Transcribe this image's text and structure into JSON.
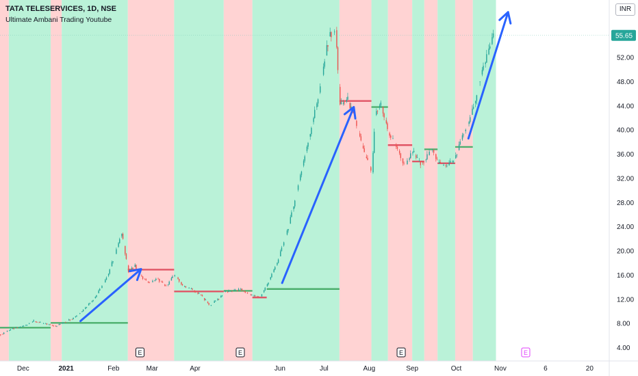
{
  "header": {
    "title": "TATA TELESERVICES, 1D, NSE",
    "subtitle": "Ultimate Ambani Trading Youtube"
  },
  "currency": "INR",
  "last_price_label": "55.65",
  "colors": {
    "green_zone": "#baf2d8",
    "red_zone": "#ffd3d3",
    "up_candle": "#26a69a",
    "down_candle": "#ef5350",
    "green_line": "#4caf6d",
    "red_line": "#e05465",
    "arrow": "#2962ff",
    "price_tag": "#26a69a"
  },
  "chart_data": {
    "type": "candlestick",
    "y_axis": {
      "range": [
        1.8,
        61.5
      ],
      "ticks": [
        "4.00",
        "8.00",
        "12.00",
        "16.00",
        "20.00",
        "24.00",
        "28.00",
        "32.00",
        "36.00",
        "40.00",
        "44.00",
        "48.00",
        "52.00"
      ],
      "tick_values": [
        4,
        8,
        12,
        16,
        20,
        24,
        28,
        32,
        36,
        40,
        44,
        48,
        52
      ]
    },
    "x_axis": {
      "ticks": [
        {
          "label": "Dec",
          "x": 21,
          "bold": false
        },
        {
          "label": "2021",
          "x": 60,
          "bold": true
        },
        {
          "label": "Feb",
          "x": 103,
          "bold": false
        },
        {
          "label": "Mar",
          "x": 138,
          "bold": false
        },
        {
          "label": "Apr",
          "x": 177,
          "bold": false
        },
        {
          "label": "Jun",
          "x": 254,
          "bold": false
        },
        {
          "label": "Jul",
          "x": 294,
          "bold": false
        },
        {
          "label": "Aug",
          "x": 335,
          "bold": false
        },
        {
          "label": "Sep",
          "x": 374,
          "bold": false
        },
        {
          "label": "Oct",
          "x": 414,
          "bold": false
        },
        {
          "label": "Nov",
          "x": 454,
          "bold": false
        },
        {
          "label": "6",
          "x": 495,
          "bold": false
        },
        {
          "label": "20",
          "x": 535,
          "bold": false
        }
      ]
    },
    "zones": [
      {
        "from": 0,
        "to": 8,
        "color": "red"
      },
      {
        "from": 8,
        "to": 46,
        "color": "green"
      },
      {
        "from": 46,
        "to": 56,
        "color": "red"
      },
      {
        "from": 56,
        "to": 116,
        "color": "green"
      },
      {
        "from": 116,
        "to": 158,
        "color": "red"
      },
      {
        "from": 158,
        "to": 203,
        "color": "green"
      },
      {
        "from": 203,
        "to": 229,
        "color": "red"
      },
      {
        "from": 229,
        "to": 308,
        "color": "green"
      },
      {
        "from": 308,
        "to": 337,
        "color": "red"
      },
      {
        "from": 337,
        "to": 352,
        "color": "green"
      },
      {
        "from": 352,
        "to": 374,
        "color": "red"
      },
      {
        "from": 374,
        "to": 385,
        "color": "green"
      },
      {
        "from": 385,
        "to": 397,
        "color": "red"
      },
      {
        "from": 397,
        "to": 413,
        "color": "green"
      },
      {
        "from": 413,
        "to": 429,
        "color": "red"
      },
      {
        "from": 429,
        "to": 450,
        "color": "green"
      }
    ],
    "levels": [
      {
        "from": 0,
        "to": 46,
        "value": 7.3,
        "color": "green"
      },
      {
        "from": 46,
        "to": 116,
        "value": 8.1,
        "color": "green"
      },
      {
        "from": 116,
        "to": 158,
        "value": 16.9,
        "color": "red"
      },
      {
        "from": 158,
        "to": 203,
        "value": 13.3,
        "color": "red"
      },
      {
        "from": 203,
        "to": 229,
        "value": 13.4,
        "color": "green"
      },
      {
        "from": 229,
        "to": 242,
        "value": 12.3,
        "color": "red"
      },
      {
        "from": 242,
        "to": 308,
        "value": 13.7,
        "color": "green"
      },
      {
        "from": 308,
        "to": 337,
        "value": 44.8,
        "color": "red"
      },
      {
        "from": 337,
        "to": 352,
        "value": 43.8,
        "color": "green"
      },
      {
        "from": 352,
        "to": 374,
        "value": 37.5,
        "color": "red"
      },
      {
        "from": 374,
        "to": 385,
        "value": 34.8,
        "color": "red"
      },
      {
        "from": 385,
        "to": 397,
        "value": 36.8,
        "color": "green"
      },
      {
        "from": 397,
        "to": 413,
        "value": 34.5,
        "color": "red"
      },
      {
        "from": 413,
        "to": 429,
        "value": 37.2,
        "color": "green"
      }
    ],
    "price_anchors": [
      [
        0,
        6.2
      ],
      [
        10,
        7.1
      ],
      [
        20,
        7.5
      ],
      [
        30,
        8.4
      ],
      [
        40,
        7.9
      ],
      [
        50,
        7.6
      ],
      [
        56,
        8.1
      ],
      [
        66,
        8.9
      ],
      [
        76,
        10.4
      ],
      [
        86,
        12.4
      ],
      [
        96,
        15.4
      ],
      [
        104,
        19.5
      ],
      [
        110,
        23.0
      ],
      [
        116,
        16.5
      ],
      [
        122,
        17.5
      ],
      [
        128,
        15.6
      ],
      [
        135,
        14.6
      ],
      [
        142,
        15.4
      ],
      [
        150,
        14.1
      ],
      [
        158,
        16.1
      ],
      [
        166,
        14.1
      ],
      [
        174,
        13.6
      ],
      [
        182,
        12.6
      ],
      [
        190,
        11.0
      ],
      [
        198,
        12.1
      ],
      [
        203,
        13.2
      ],
      [
        210,
        13.4
      ],
      [
        218,
        13.6
      ],
      [
        229,
        12.5
      ],
      [
        236,
        12.5
      ],
      [
        242,
        14.5
      ],
      [
        252,
        18.5
      ],
      [
        262,
        24.5
      ],
      [
        272,
        32.5
      ],
      [
        282,
        40.5
      ],
      [
        290,
        47.0
      ],
      [
        298,
        55.5
      ],
      [
        304,
        56.5
      ],
      [
        308,
        44.0
      ],
      [
        315,
        45.0
      ],
      [
        322,
        41.5
      ],
      [
        330,
        36.0
      ],
      [
        337,
        33.0
      ],
      [
        340,
        42.5
      ],
      [
        345,
        44.5
      ],
      [
        352,
        39.5
      ],
      [
        360,
        37.0
      ],
      [
        367,
        34.0
      ],
      [
        374,
        36.5
      ],
      [
        380,
        34.5
      ],
      [
        385,
        35.0
      ],
      [
        392,
        37.0
      ],
      [
        397,
        34.5
      ],
      [
        405,
        34.0
      ],
      [
        413,
        35.5
      ],
      [
        419,
        39.0
      ],
      [
        424,
        41.0
      ],
      [
        429,
        43.5
      ],
      [
        434,
        48.0
      ],
      [
        440,
        51.5
      ],
      [
        444,
        53.5
      ],
      [
        447,
        55.6
      ]
    ],
    "event_markers": [
      {
        "label": "E",
        "x": 127,
        "style": "dark"
      },
      {
        "label": "E",
        "x": 218,
        "style": "dark"
      },
      {
        "label": "E",
        "x": 364,
        "style": "dark"
      },
      {
        "label": "E",
        "x": 477,
        "style": "magenta"
      }
    ],
    "arrows": [
      [
        [
          73,
          8.4
        ],
        [
          128,
          17.0
        ]
      ],
      [
        [
          256,
          14.7
        ],
        [
          321,
          43.8
        ]
      ],
      [
        [
          425,
          38.6
        ],
        [
          461,
          59.5
        ]
      ]
    ],
    "last_price": 55.65
  }
}
